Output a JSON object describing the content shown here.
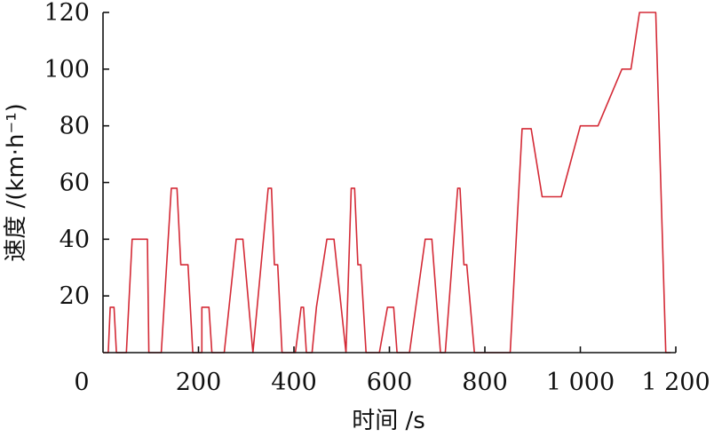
{
  "chart_data": {
    "type": "line",
    "xlabel": "时间 /s",
    "ylabel": "速度 /(km·h⁻¹)",
    "xlim": [
      0,
      1200
    ],
    "ylim": [
      0,
      120
    ],
    "x_ticks": [
      0,
      200,
      400,
      600,
      800,
      1000,
      1200
    ],
    "x_tick_labels": [
      "0",
      "200",
      "400",
      "600",
      "800",
      "1 000",
      "1 200"
    ],
    "y_ticks": [
      20,
      40,
      60,
      80,
      100,
      120
    ],
    "y_tick_labels": [
      "20",
      "40",
      "60",
      "80",
      "100",
      "120"
    ],
    "grid": false,
    "series": [
      {
        "color": "#d42a36",
        "x": [
          0,
          11,
          15,
          23,
          28,
          36,
          49,
          61,
          85,
          93,
          96,
          117,
          122,
          143,
          155,
          163,
          178,
          188,
          207,
          207,
          207,
          218,
          222,
          228,
          240,
          240,
          254,
          279,
          286,
          293,
          314,
          346,
          353,
          359,
          366,
          375,
          389,
          403,
          415,
          420,
          426,
          438,
          438,
          447,
          469,
          479,
          484,
          509,
          520,
          527,
          534,
          540,
          551,
          565,
          579,
          596,
          602,
          609,
          616,
          633,
          642,
          675,
          681,
          689,
          707,
          717,
          743,
          748,
          756,
          762,
          778,
          781,
          797,
          832,
          851,
          853,
          878,
          897,
          920,
          960,
          1000,
          1037,
          1087,
          1106,
          1124,
          1158,
          1179,
          1189,
          1189
        ],
        "y": [
          0,
          0,
          16,
          16,
          0,
          0,
          0,
          40,
          40,
          40,
          0,
          0,
          0,
          58,
          58,
          31,
          31,
          0,
          0,
          0,
          16,
          16,
          16,
          0,
          0,
          0,
          0,
          40,
          40,
          40,
          0,
          58,
          58,
          31,
          31,
          0,
          0,
          0,
          16,
          16,
          0,
          0,
          0,
          16,
          40,
          40,
          40,
          0,
          58,
          58,
          31,
          31,
          0,
          0,
          0,
          16,
          16,
          16,
          0,
          0,
          0,
          40,
          40,
          40,
          0,
          0,
          58,
          58,
          31,
          31,
          0,
          0,
          0,
          0,
          0,
          0,
          79,
          79,
          55,
          55,
          80,
          80,
          100,
          100,
          120,
          120,
          0,
          0,
          0
        ]
      }
    ]
  }
}
